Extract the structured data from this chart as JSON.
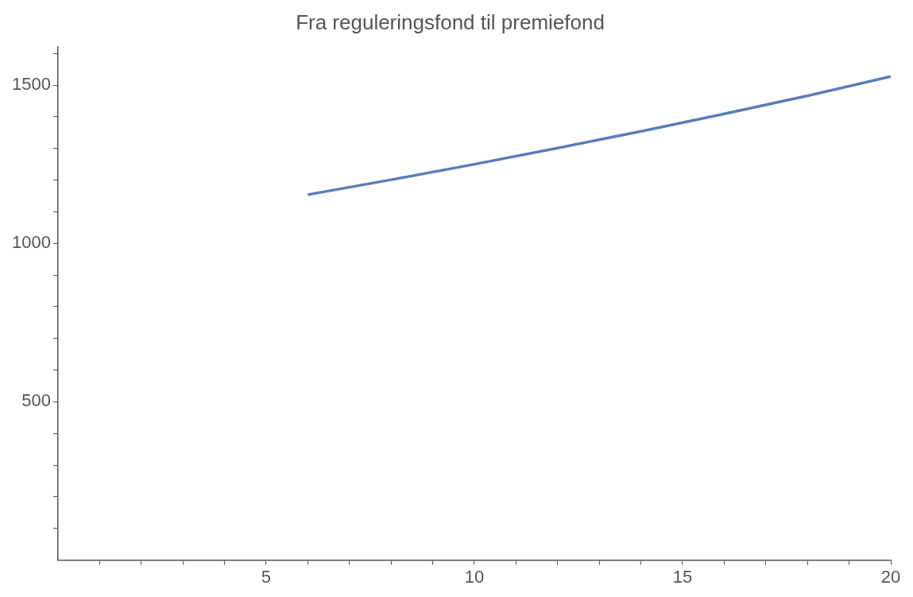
{
  "chart_data": {
    "type": "line",
    "title": "Fra reguleringsfond til premiefond",
    "x": [
      6,
      8,
      10,
      12,
      14,
      16,
      18,
      20
    ],
    "series": [
      {
        "color": "#5b7db8",
        "values": [
          1154,
          1201,
          1250,
          1301,
          1354,
          1409,
          1466,
          1527
        ]
      }
    ],
    "xlim": [
      0,
      20
    ],
    "xticks": [
      {
        "value": 1,
        "label": null
      },
      {
        "value": 2,
        "label": null
      },
      {
        "value": 3,
        "label": null
      },
      {
        "value": 4,
        "label": null
      },
      5,
      {
        "value": 6,
        "label": null
      },
      {
        "value": 7,
        "label": null
      },
      {
        "value": 8,
        "label": null
      },
      {
        "value": 9,
        "label": null
      },
      10,
      {
        "value": 11,
        "label": null
      },
      {
        "value": 12,
        "label": null
      },
      {
        "value": 13,
        "label": null
      },
      {
        "value": 14,
        "label": null
      },
      15,
      {
        "value": 16,
        "label": null
      },
      {
        "value": 17,
        "label": null
      },
      {
        "value": 18,
        "label": null
      },
      {
        "value": 19,
        "label": null
      },
      20
    ],
    "ylim": [
      0,
      1620
    ],
    "yticks": [
      {
        "value": 100,
        "label": null
      },
      {
        "value": 200,
        "label": null
      },
      {
        "value": 300,
        "label": null
      },
      {
        "value": 400,
        "label": null
      },
      500,
      {
        "value": 600,
        "label": null
      },
      {
        "value": 700,
        "label": null
      },
      {
        "value": 800,
        "label": null
      },
      {
        "value": 900,
        "label": null
      },
      1000,
      {
        "value": 1100,
        "label": null
      },
      {
        "value": 1200,
        "label": null
      },
      {
        "value": 1300,
        "label": null
      },
      {
        "value": 1400,
        "label": null
      },
      1500,
      {
        "value": 1600,
        "label": null
      }
    ],
    "grid": false,
    "legend": false,
    "marker": "none",
    "line_style": "solid"
  }
}
